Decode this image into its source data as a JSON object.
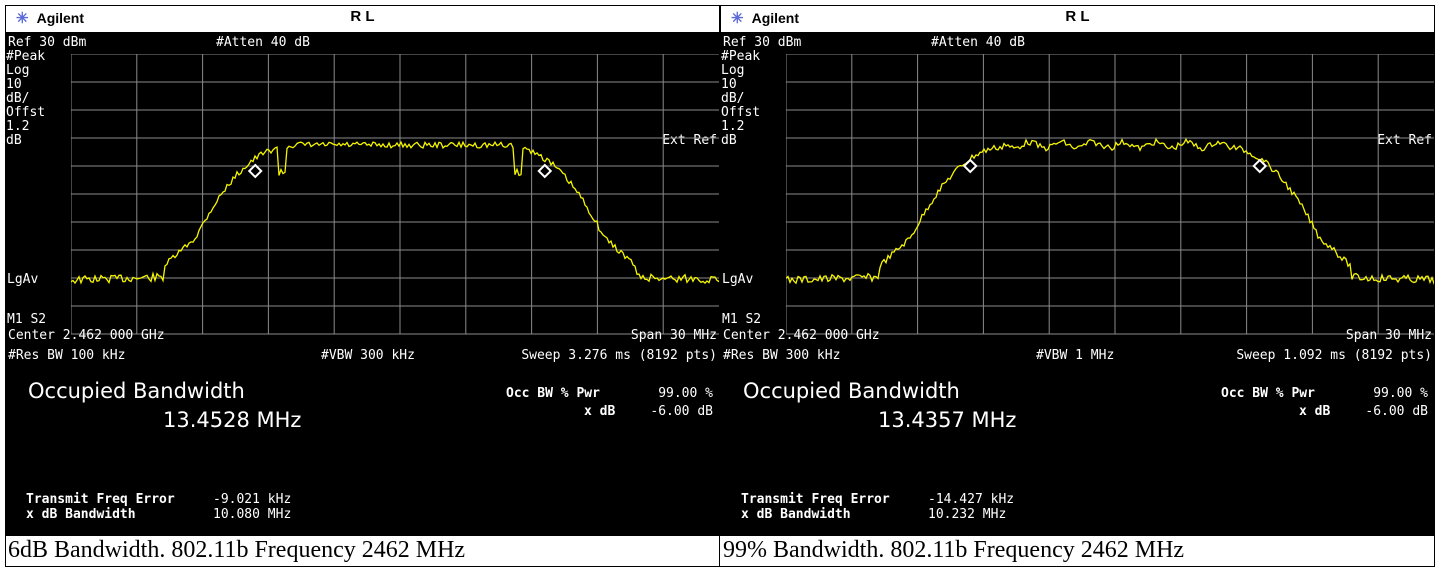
{
  "panels": [
    {
      "header": {
        "brand": "Agilent",
        "mode": "R L"
      },
      "ref": "Ref 30 dBm",
      "atten": "#Atten 40 dB",
      "side_labels": [
        "#Peak",
        "Log",
        "10",
        "dB/",
        "Offst",
        "1.2",
        "dB"
      ],
      "ext_ref": "Ext Ref",
      "lgav": "LgAv",
      "m1s2": "M1  S2",
      "center": "Center 2.462 000 GHz",
      "span": "Span 30 MHz",
      "res_bw": "#Res BW 100 kHz",
      "vbw": "#VBW 300 kHz",
      "sweep": "Sweep 3.276 ms (8192 pts)",
      "occ_title": "Occupied Bandwidth",
      "occ_value": "13.4528 MHz",
      "occ_pwr_label": "Occ BW % Pwr",
      "occ_pwr_value": "99.00 %",
      "xdb_label": "x dB",
      "xdb_value": "-6.00 dB",
      "tfe_label": "Transmit Freq Error",
      "tfe_value": "-9.021 kHz",
      "xdb_bw_label": "x dB Bandwidth",
      "xdb_bw_value": "10.080 MHz",
      "caption": "6dB Bandwidth. 802.11b Frequency 2462 MHz",
      "trace_variant": "a"
    },
    {
      "header": {
        "brand": "Agilent",
        "mode": "R L"
      },
      "ref": "Ref 30 dBm",
      "atten": "#Atten 40 dB",
      "side_labels": [
        "#Peak",
        "Log",
        "10",
        "dB/",
        "Offst",
        "1.2",
        "dB"
      ],
      "ext_ref": "Ext Ref",
      "lgav": "LgAv",
      "m1s2": "M1  S2",
      "center": "Center 2.462 000 GHz",
      "span": "Span 30 MHz",
      "res_bw": "#Res BW 300 kHz",
      "vbw": "#VBW 1 MHz",
      "sweep": "Sweep 1.092 ms (8192 pts)",
      "occ_title": "Occupied Bandwidth",
      "occ_value": "13.4357 MHz",
      "occ_pwr_label": "Occ BW % Pwr",
      "occ_pwr_value": "99.00 %",
      "xdb_label": "x dB",
      "xdb_value": "-6.00 dB",
      "tfe_label": "Transmit Freq Error",
      "tfe_value": "-14.427 kHz",
      "xdb_bw_label": "x dB Bandwidth",
      "xdb_bw_value": "10.232 MHz",
      "caption": "99% Bandwidth. 802.11b Frequency 2462 MHz",
      "trace_variant": "b"
    }
  ],
  "colors": {
    "trace": "#f5f500",
    "grid": "#8a8a8a",
    "screen": "#000000",
    "marker": "#ffffff"
  },
  "icons": {
    "brand": "agilent-star-icon",
    "marker": "diamond-marker-icon"
  }
}
